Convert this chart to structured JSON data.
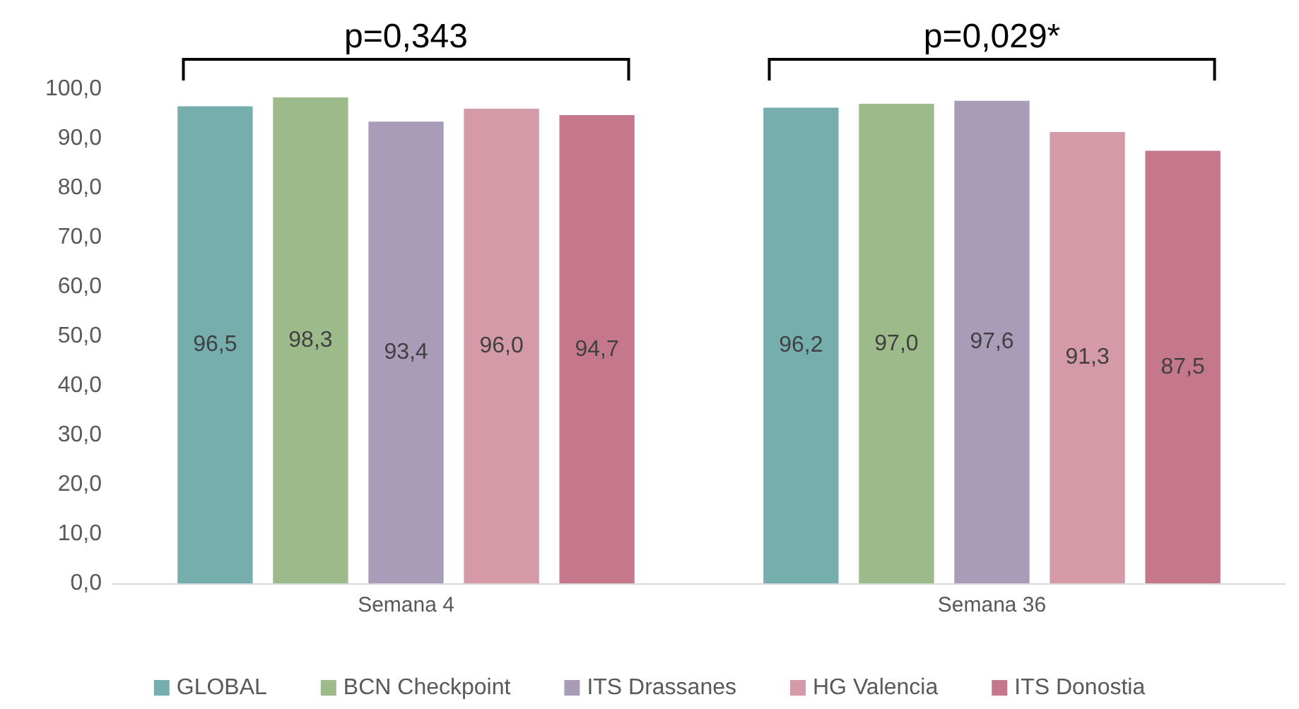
{
  "chart_data": {
    "type": "bar",
    "categories": [
      "Semana 4",
      "Semana 36"
    ],
    "series": [
      {
        "name": "GLOBAL",
        "color": "#76aeae",
        "values": [
          96.5,
          96.2
        ],
        "value_labels": [
          "96,5",
          "96,2"
        ]
      },
      {
        "name": "BCN Checkpoint",
        "color": "#9dbb8a",
        "values": [
          98.3,
          97.0
        ],
        "value_labels": [
          "98,3",
          "97,0"
        ]
      },
      {
        "name": "ITS Drassanes",
        "color": "#a89cb8",
        "values": [
          93.4,
          97.6
        ],
        "value_labels": [
          "93,4",
          "97,6"
        ]
      },
      {
        "name": "HG Valencia",
        "color": "#d59aa8",
        "values": [
          96.0,
          91.3
        ],
        "value_labels": [
          "96,0",
          "91,3"
        ]
      },
      {
        "name": "ITS Donostia",
        "color": "#c5788c",
        "values": [
          94.7,
          87.5
        ],
        "value_labels": [
          "94,7",
          "87,5"
        ]
      }
    ],
    "ylim": [
      0,
      100
    ],
    "yticks": [
      {
        "value": 0,
        "label": "0,0"
      },
      {
        "value": 10,
        "label": "10,0"
      },
      {
        "value": 20,
        "label": "20,0"
      },
      {
        "value": 30,
        "label": "30,0"
      },
      {
        "value": 40,
        "label": "40,0"
      },
      {
        "value": 50,
        "label": "50,0"
      },
      {
        "value": 60,
        "label": "60,0"
      },
      {
        "value": 70,
        "label": "70,0"
      },
      {
        "value": 80,
        "label": "80,0"
      },
      {
        "value": 90,
        "label": "90,0"
      },
      {
        "value": 100,
        "label": "100,0"
      }
    ],
    "annotations": [
      "p=0,343",
      "p=0,029*"
    ],
    "legend": "bottom",
    "grid": false
  }
}
